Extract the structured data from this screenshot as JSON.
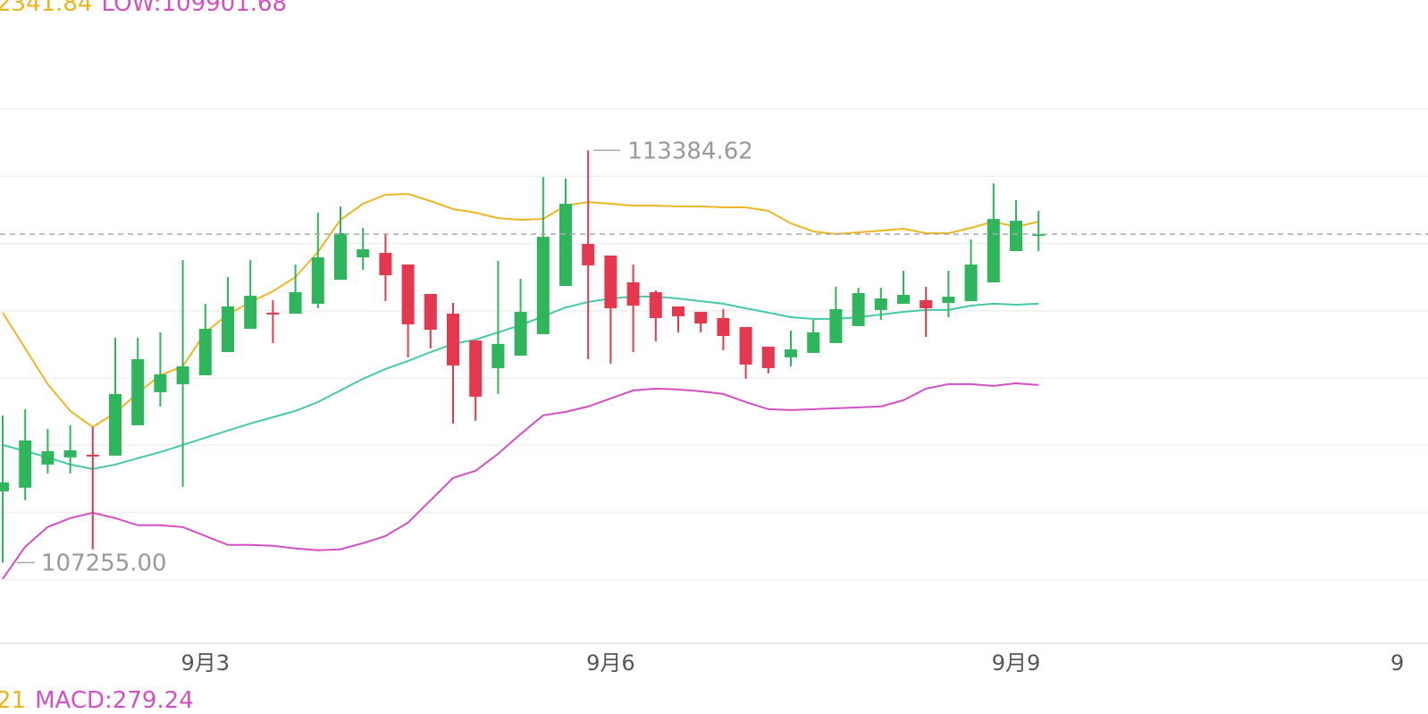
{
  "chart_data": {
    "type": "candlestick",
    "header": [
      {
        "text": "2341.84",
        "color": "#e9b51c"
      },
      {
        "text": "LOW:109901.68",
        "color": "#d24fc4"
      }
    ],
    "footer": [
      {
        "text": "21",
        "color": "#e9b51c"
      },
      {
        "text": "MACD:279.24",
        "color": "#d24fc4"
      }
    ],
    "categories": [
      null,
      null,
      null,
      null,
      null,
      null,
      null,
      null,
      null,
      "9月3",
      null,
      null,
      null,
      null,
      null,
      null,
      null,
      null,
      null,
      null,
      null,
      null,
      null,
      null,
      null,
      null,
      null,
      "9月6",
      null,
      null,
      null,
      null,
      null,
      null,
      null,
      null,
      null,
      null,
      null,
      null,
      null,
      null,
      null,
      null,
      null,
      "9月9",
      null
    ],
    "edge_label": "9",
    "open": [
      108315,
      108368,
      108713,
      108819,
      108859,
      108846,
      109297,
      109789,
      109908,
      110041,
      110386,
      110732,
      110971,
      110957,
      111104,
      111462,
      111794,
      111860,
      111688,
      111250,
      110957,
      110559,
      110147,
      110333,
      110652,
      111369,
      111993,
      111821,
      111422,
      111276,
      111064,
      110984,
      110891,
      110758,
      110466,
      110307,
      110373,
      110519,
      110772,
      111011,
      111104,
      111157,
      111117,
      111143,
      111422,
      111887,
      112113
    ],
    "high": [
      109444,
      109536,
      109244,
      109297,
      109271,
      110599,
      110599,
      110679,
      111754,
      111104,
      111502,
      111754,
      111157,
      111688,
      112458,
      112551,
      112232,
      112153,
      111688,
      111250,
      111117,
      110559,
      111741,
      111475,
      112989,
      112963,
      113384.62,
      111821,
      111688,
      111303,
      111064,
      110984,
      111024,
      110758,
      110466,
      110705,
      110864,
      111356,
      111343,
      111343,
      111595,
      111356,
      111595,
      112060,
      112896,
      112644,
      112485
    ],
    "low": [
      107255,
      108182,
      108580,
      108580,
      107452,
      108846,
      109297,
      109576,
      108381,
      110041,
      110386,
      110732,
      110519,
      110957,
      111037,
      111462,
      111608,
      111143,
      110307,
      110440,
      109324,
      109364,
      109762,
      110333,
      110652,
      111369,
      110280,
      110214,
      110386,
      110546,
      110679,
      110679,
      110413,
      109988,
      110068,
      110174,
      110373,
      110519,
      110772,
      110864,
      111104,
      110612,
      110904,
      111143,
      111422,
      111887,
      111887
    ],
    "close": [
      108448,
      109072,
      108912,
      108926,
      108833,
      109762,
      110280,
      110054,
      110174,
      110732,
      111064,
      111223,
      110944,
      111276,
      111794,
      112153,
      111914,
      111528,
      110798,
      110718,
      110187,
      109722,
      110506,
      110984,
      112100,
      112591,
      111675,
      111037,
      111077,
      110891,
      110918,
      110811,
      110625,
      110200,
      110147,
      110426,
      110679,
      111024,
      111263,
      111183,
      111236,
      111037,
      111210,
      111688,
      112365,
      112339,
      112139
    ],
    "up_color": "#2fb65c",
    "down_color": "#e5384f",
    "series": [
      {
        "color": "#ecb624",
        "values": [
          110971,
          110440,
          109908,
          109510,
          109271,
          109483,
          109776,
          110041,
          110174,
          110679,
          110944,
          111130,
          111289,
          111502,
          111874,
          112352,
          112591,
          112724,
          112737,
          112631,
          112511,
          112458,
          112378,
          112352,
          112365,
          112564,
          112617,
          112591,
          112564,
          112564,
          112551,
          112551,
          112538,
          112538,
          112485,
          112299,
          112179,
          112139,
          112166,
          112192,
          112219,
          112153,
          112153,
          112232,
          112325,
          112246,
          112325
        ]
      },
      {
        "color": "#45c9a9",
        "values": [
          109005,
          108912,
          108819,
          108713,
          108647,
          108713,
          108806,
          108899,
          109005,
          109112,
          109218,
          109324,
          109417,
          109510,
          109643,
          109815,
          109988,
          110134,
          110254,
          110386,
          110506,
          110572,
          110679,
          110785,
          110918,
          111050,
          111130,
          111183,
          111210,
          111210,
          111183,
          111143,
          111104,
          111037,
          110971,
          110904,
          110878,
          110878,
          110904,
          110944,
          110984,
          111011,
          111011,
          111077,
          111104,
          111090,
          111104
        ]
      },
      {
        "color": "#d24fc4",
        "values": [
          107013,
          107491,
          107784,
          107916,
          107996,
          107916,
          107810,
          107810,
          107784,
          107651,
          107518,
          107518,
          107505,
          107465,
          107438,
          107452,
          107544,
          107651,
          107850,
          108182,
          108514,
          108620,
          108872,
          109165,
          109444,
          109497,
          109576,
          109696,
          109815,
          109842,
          109829,
          109802,
          109762,
          109643,
          109536,
          109523,
          109536,
          109550,
          109563,
          109576,
          109669,
          109842,
          109908,
          109908,
          109882,
          109922,
          109895
        ]
      }
    ],
    "high_label": "113384.62",
    "low_label": "107255.00",
    "ylim": [
      106000,
      114000
    ],
    "yticks": [
      107000,
      108000,
      109000,
      110000,
      111000,
      112000,
      113000,
      114000
    ],
    "grid": true
  }
}
